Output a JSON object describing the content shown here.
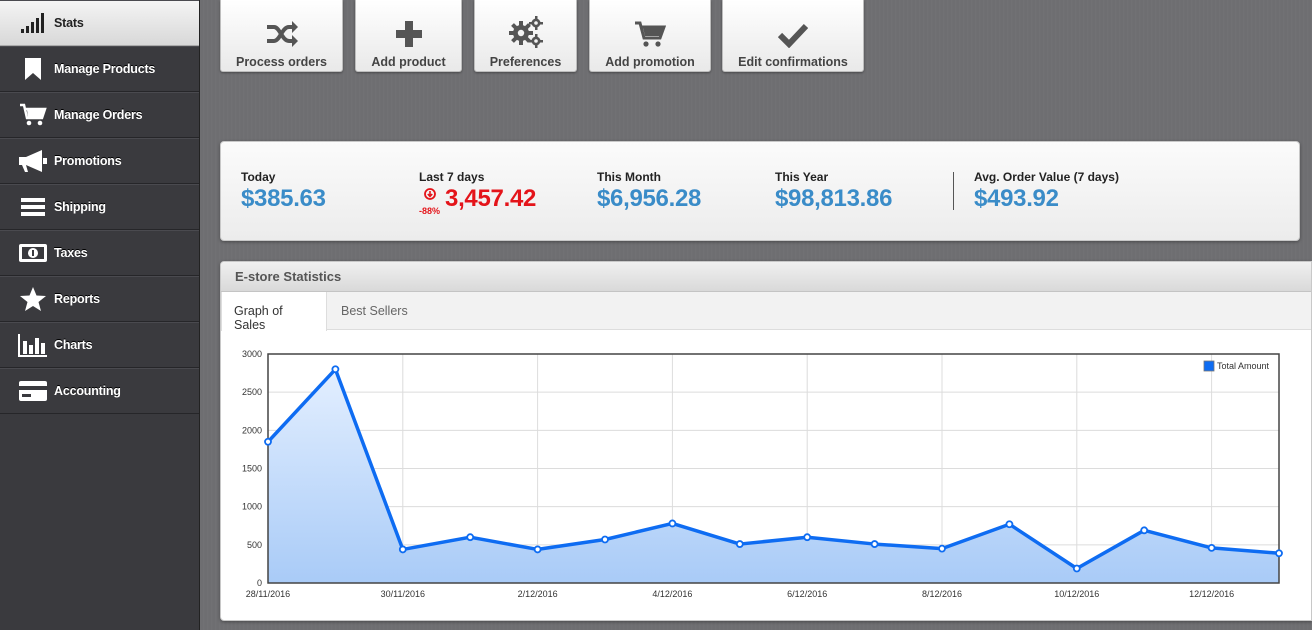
{
  "sidebar": {
    "items": [
      {
        "label": "Stats",
        "icon": "signal-bars-icon",
        "active": true
      },
      {
        "label": "Manage Products",
        "icon": "bookmark-icon"
      },
      {
        "label": "Manage Orders",
        "icon": "cart-icon"
      },
      {
        "label": "Promotions",
        "icon": "megaphone-icon"
      },
      {
        "label": "Shipping",
        "icon": "list-icon"
      },
      {
        "label": "Taxes",
        "icon": "banknote-icon"
      },
      {
        "label": "Reports",
        "icon": "star-icon"
      },
      {
        "label": "Charts",
        "icon": "bar-chart-icon"
      },
      {
        "label": "Accounting",
        "icon": "credit-card-icon"
      }
    ]
  },
  "quick_actions": [
    {
      "label": "Process orders",
      "icon": "shuffle-icon"
    },
    {
      "label": "Add product",
      "icon": "plus-icon"
    },
    {
      "label": "Preferences",
      "icon": "gears-icon"
    },
    {
      "label": "Add promotion",
      "icon": "cart-icon"
    },
    {
      "label": "Edit confirmations",
      "icon": "check-icon"
    }
  ],
  "stats": {
    "today": {
      "label": "Today",
      "value": "$385.63"
    },
    "last7": {
      "label": "Last 7 days",
      "value": "3,457.42",
      "trend": "-88%"
    },
    "month": {
      "label": "This Month",
      "value": "$6,956.28"
    },
    "year": {
      "label": "This Year",
      "value": "$98,813.86"
    },
    "aov": {
      "label": "Avg. Order Value (7 days)",
      "value": "$493.92"
    }
  },
  "estore": {
    "title": "E-store Statistics",
    "tabs": [
      "Graph of Sales",
      "Best Sellers"
    ]
  },
  "colors": {
    "accent_blue": "#3a8cc8",
    "negative_red": "#e4141a",
    "series_line": "#0e6cf2"
  },
  "chart_data": {
    "type": "area",
    "x": [
      "28/11/2016",
      "29/11/2016",
      "30/11/2016",
      "1/12/2016",
      "2/12/2016",
      "3/12/2016",
      "4/12/2016",
      "5/12/2016",
      "6/12/2016",
      "7/12/2016",
      "8/12/2016",
      "9/12/2016",
      "10/12/2016",
      "11/12/2016",
      "12/12/2016",
      "13/12/2016"
    ],
    "x_tick_labels": [
      "28/11/2016",
      "30/11/2016",
      "2/12/2016",
      "4/12/2016",
      "6/12/2016",
      "8/12/2016",
      "10/12/2016",
      "12/12/2016"
    ],
    "series": [
      {
        "name": "Total Amount",
        "values": [
          1850,
          2800,
          440,
          600,
          440,
          570,
          780,
          510,
          600,
          510,
          450,
          770,
          190,
          690,
          460,
          390
        ]
      }
    ],
    "yticks": [
      0,
      500,
      1000,
      1500,
      2000,
      2500,
      3000
    ],
    "ylim": [
      0,
      3000
    ],
    "grid": true,
    "legend": "top-right"
  }
}
